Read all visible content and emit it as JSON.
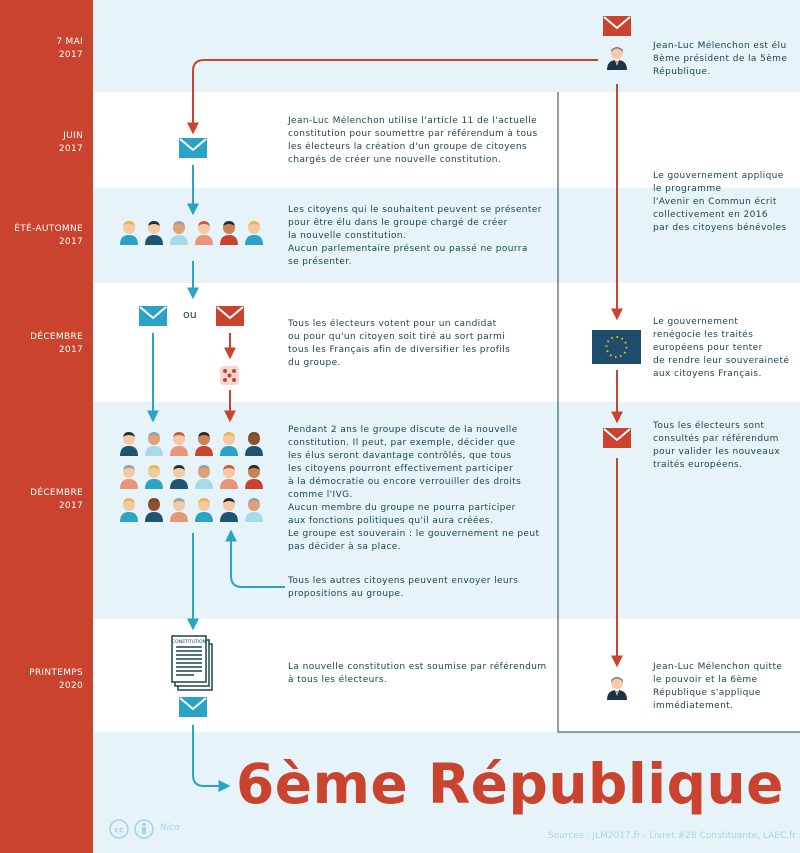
{
  "timeline": [
    {
      "date_line1": "7 MAI",
      "date_line2": "2017"
    },
    {
      "date_line1": "JUIN",
      "date_line2": "2017"
    },
    {
      "date_line1": "ÉTÉ-AUTOMNE",
      "date_line2": "2017"
    },
    {
      "date_line1": "DÉCEMBRE",
      "date_line2": "2017"
    },
    {
      "date_line1": "DÉCEMBRE",
      "date_line2": "2017"
    },
    {
      "date_line1": "PRINTEMPS",
      "date_line2": "2020"
    }
  ],
  "right_column": {
    "step1": [
      "Jean-Luc Mélenchon est élu",
      "8ème président de la 5ème",
      "République."
    ],
    "step2": [
      "Le gouvernement applique",
      "le programme",
      "l'Avenir en Commun écrit",
      "collectivement en 2016",
      "par des citoyens bénévoles"
    ],
    "step3": [
      "Le gouvernement",
      "renégocie les traités",
      "européens pour tenter",
      "de rendre leur souveraineté",
      "aux citoyens Français."
    ],
    "step4": [
      "Tous les électeurs sont",
      "consultés par référendum",
      "pour valider les nouveaux",
      "traités européens."
    ],
    "step5": [
      "Jean-Luc Mélenchon quitte",
      "le pouvoir et la 6ème",
      "République s'applique",
      "immédiatement."
    ]
  },
  "center_column": {
    "juin": [
      "Jean-Luc Mélenchon utilise l'article 11 de l'actuelle",
      "constitution pour soumettre par référendum à tous",
      "les électeurs la création d'un groupe de citoyens",
      "chargés de créer une nouvelle constitution."
    ],
    "ete": [
      "Les citoyens qui le souhaitent peuvent se présenter",
      "pour être élu dans le groupe chargé de créer",
      "la nouvelle constitution.",
      "Aucun parlementaire présent ou passé ne pourra",
      "se présenter."
    ],
    "decembre1": [
      "Tous les électeurs votent pour un candidat",
      "ou pour qu'un citoyen soit tiré au sort parmi",
      "tous les Français afin de diversifier les profils",
      "du groupe."
    ],
    "decembre2": [
      "Pendant 2 ans le groupe discute de la nouvelle",
      "constitution. Il peut, par exemple, décider que",
      "les élus seront davantage contrôlés, que tous",
      "les citoyens pourront effectivement participer",
      "à la démocratie ou encore verrouiller des droits",
      "comme l'IVG.",
      "Aucun membre du groupe ne pourra participer",
      "aux fonctions politiques qu'il aura créées.",
      "Le groupe est souverain : le gouvernement ne peut",
      "pas décider à sa place."
    ],
    "propositions": [
      "Tous les autres citoyens peuvent envoyer leurs",
      "propositions au groupe."
    ],
    "printemps": [
      "La nouvelle constitution est soumise par référendum",
      "à tous les électeurs."
    ]
  },
  "ou_label": "ou",
  "constitution_label": "CONSTITUTION",
  "final_title": "6ème République",
  "credit_author": "Nico",
  "sources": "Sources : JLM2017.fr - Livret #28 Constituante, LAEC.fr",
  "colors": {
    "red": "#c9432f",
    "blue": "#2aa3c7",
    "band": "#e6f4fa",
    "text": "#1b4454"
  }
}
